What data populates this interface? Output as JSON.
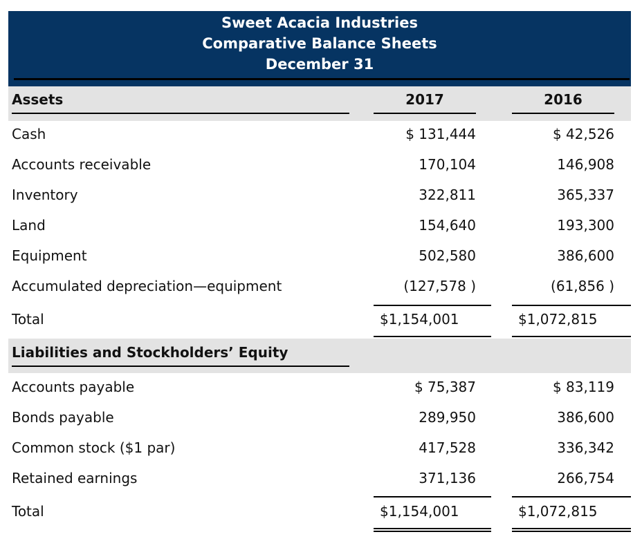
{
  "header": {
    "company": "Sweet Acacia Industries",
    "statement": "Comparative Balance Sheets",
    "date": "December 31",
    "background_color": "#063462"
  },
  "columns": [
    "2017",
    "2016"
  ],
  "assets": {
    "title": "Assets",
    "rows": [
      {
        "label": "Cash",
        "v2017": "$ 131,444",
        "v2016": "$ 42,526"
      },
      {
        "label": "Accounts receivable",
        "v2017": "170,104",
        "v2016": "146,908"
      },
      {
        "label": "Inventory",
        "v2017": "322,811",
        "v2016": "365,337"
      },
      {
        "label": "Land",
        "v2017": "154,640",
        "v2016": "193,300"
      },
      {
        "label": "Equipment",
        "v2017": "502,580",
        "v2016": "386,600"
      },
      {
        "label": "Accumulated depreciation—equipment",
        "v2017": "(127,578 )",
        "v2016": "(61,856 )"
      }
    ],
    "total": {
      "label": "Total",
      "v2017": "$1,154,001",
      "v2016": "$1,072,815"
    }
  },
  "liabilities": {
    "title": "Liabilities and Stockholders’ Equity",
    "rows": [
      {
        "label": "Accounts payable",
        "v2017": "$ 75,387",
        "v2016": "$ 83,119"
      },
      {
        "label": "Bonds payable",
        "v2017": "289,950",
        "v2016": "386,600"
      },
      {
        "label": "Common stock ($1 par)",
        "v2017": "417,528",
        "v2016": "336,342"
      },
      {
        "label": "Retained earnings",
        "v2017": "371,136",
        "v2016": "266,754"
      }
    ],
    "total": {
      "label": "Total",
      "v2017": "$1,154,001",
      "v2016": "$1,072,815"
    }
  }
}
